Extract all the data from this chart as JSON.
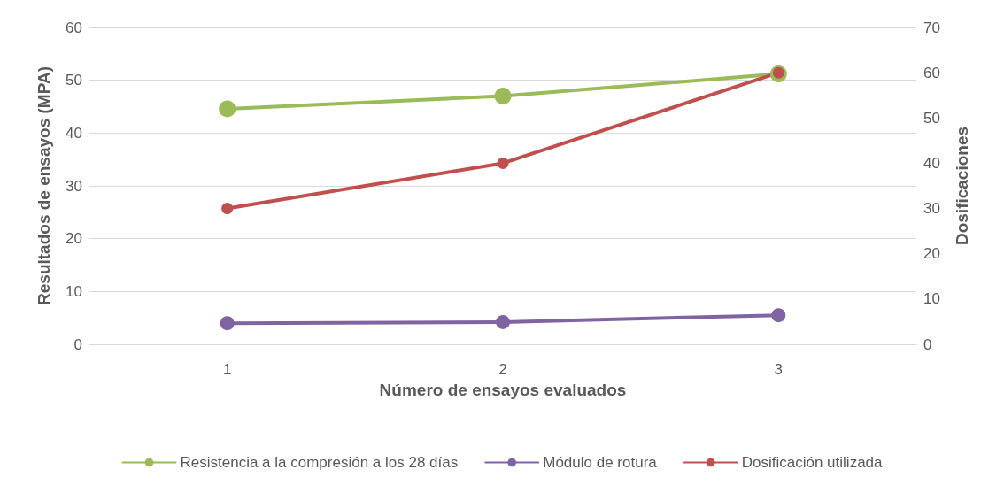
{
  "chart_data": {
    "type": "line",
    "xlabel": "Número de ensayos evaluados",
    "ylabel": "Resultados de ensayos (MPA)",
    "y2label": "Dosificaciones",
    "categories": [
      "1",
      "2",
      "3"
    ],
    "series": [
      {
        "name": "Resistencia a la compresión a los 28 días",
        "color": "#9bbb59",
        "values": [
          44.6,
          47.0,
          51.2
        ]
      },
      {
        "name": "Módulo de rotura",
        "color": "#8064a2",
        "values": [
          4.0,
          4.2,
          5.5
        ]
      },
      {
        "name": "Dosificación utilizada",
        "color": "#c0504d",
        "values": [
          30,
          40,
          60
        ],
        "axis": "y2"
      }
    ],
    "ylim": [
      0,
      60
    ],
    "yticks": [
      0,
      10,
      20,
      30,
      40,
      50,
      60
    ],
    "y2lim": [
      0,
      70
    ],
    "y2ticks": [
      0,
      10,
      20,
      30,
      40,
      50,
      60,
      70
    ],
    "grid": "y",
    "legend": "bottom",
    "marker": "circle",
    "line_style": "solid"
  }
}
